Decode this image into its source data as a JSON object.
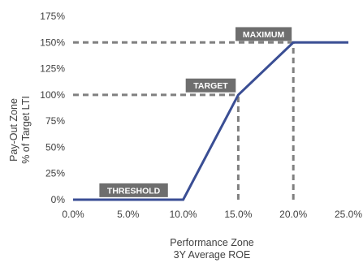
{
  "chart_data": {
    "type": "line",
    "title": "",
    "xlabel_lines": [
      "Performance  Zone",
      "3Y Average  ROE"
    ],
    "ylabel_lines": [
      "Pay-Out Zone",
      "% of Target  LTI"
    ],
    "xlim": [
      0,
      25
    ],
    "ylim": [
      0,
      175
    ],
    "x_ticks": [
      0,
      5,
      10,
      15,
      20,
      25
    ],
    "x_tick_labels": [
      "0.0%",
      "5.0%",
      "10.0%",
      "15.0%",
      "20.0%",
      "25.0%"
    ],
    "y_ticks": [
      0,
      25,
      50,
      75,
      100,
      125,
      150,
      175
    ],
    "y_tick_labels": [
      "0%",
      "25%",
      "50%",
      "75%",
      "100%",
      "125%",
      "150%",
      "175%"
    ],
    "grid": false,
    "series": [
      {
        "color": "#3A4E94",
        "x": [
          0,
          10,
          15,
          20,
          25
        ],
        "y": [
          0,
          0,
          100,
          150,
          150
        ]
      }
    ],
    "reference_lines": [
      {
        "x": [
          0,
          15
        ],
        "y": [
          100,
          100
        ]
      },
      {
        "x": [
          15,
          15
        ],
        "y": [
          0,
          100
        ]
      },
      {
        "x": [
          0,
          20
        ],
        "y": [
          150,
          150
        ]
      },
      {
        "x": [
          20,
          20
        ],
        "y": [
          0,
          150
        ]
      }
    ],
    "reference_color": "#808080",
    "annotations": [
      {
        "text": "THRESHOLD",
        "x": 5.5,
        "y": 9
      },
      {
        "text": "TARGET",
        "x": 12.5,
        "y": 109
      },
      {
        "text": "MAXIMUM",
        "x": 17.3,
        "y": 158
      }
    ],
    "annotation_fill": "#6E6E6E"
  }
}
